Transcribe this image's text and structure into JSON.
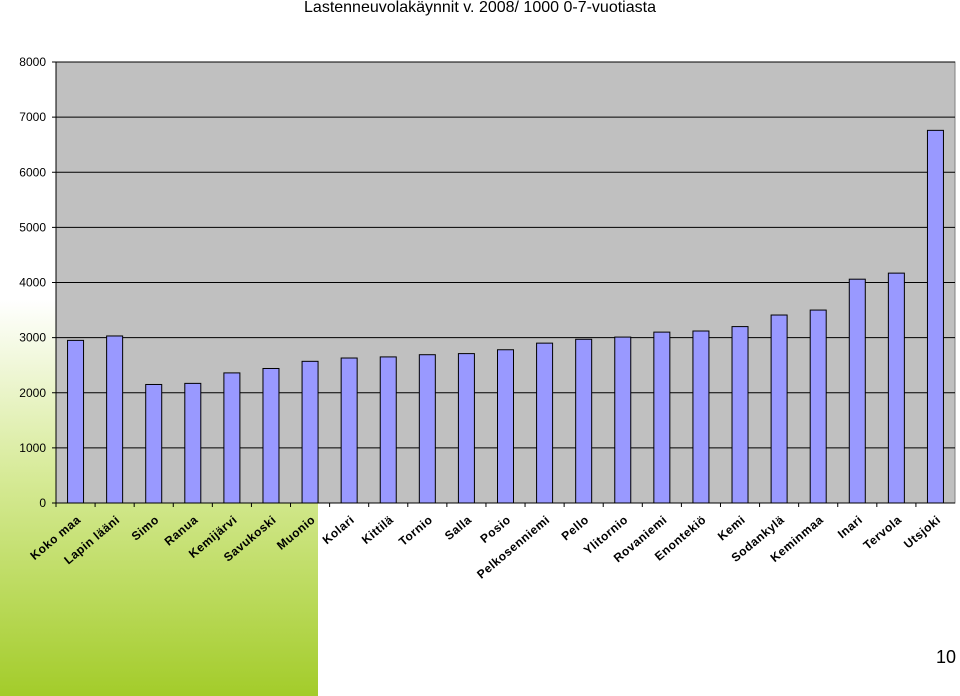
{
  "chart_data": {
    "type": "bar",
    "title": "Lastenneuvolakäynnit v. 2008/ 1000  0-7-vuotiasta",
    "xlabel": "",
    "ylabel": "",
    "ylim": [
      0,
      8000
    ],
    "yticks": [
      0,
      1000,
      2000,
      3000,
      4000,
      5000,
      6000,
      7000,
      8000
    ],
    "grid": true,
    "legend": "none",
    "categories": [
      "Koko maa",
      "Lapin lääni",
      "Simo",
      "Ranua",
      "Kemijärvi",
      "Savukoski",
      "Muonio",
      "Kolari",
      "Kittilä",
      "Tornio",
      "Salla",
      "Posio",
      "Pelkosenniemi",
      "Pello",
      "Ylitornio",
      "Rovaniemi",
      "Enontekiö",
      "Kemi",
      "Sodankylä",
      "Keminmaa",
      "Inari",
      "Tervola",
      "Utsjoki"
    ],
    "values": [
      2950,
      3030,
      2150,
      2170,
      2360,
      2440,
      2570,
      2630,
      2650,
      2690,
      2710,
      2780,
      2900,
      2970,
      3010,
      3100,
      3120,
      3200,
      3410,
      3500,
      4060,
      4170,
      6760
    ],
    "colors": {
      "bar_fill": "#9999ff",
      "bar_stroke": "#000000",
      "plot_bg": "#c0c0c0",
      "grid": "#000000"
    }
  },
  "page_number": "10"
}
